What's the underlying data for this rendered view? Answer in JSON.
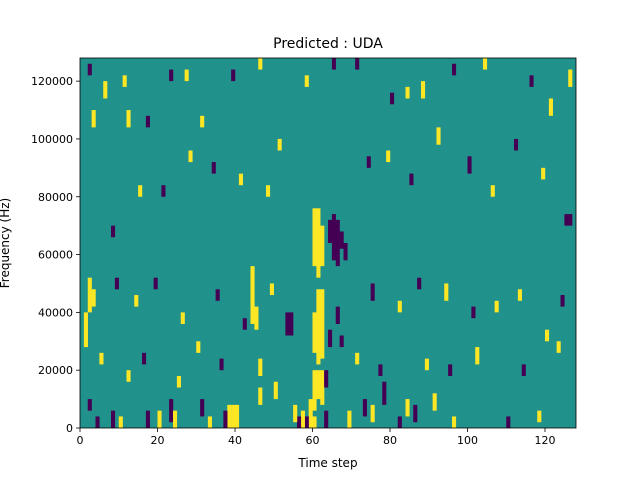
{
  "chart_data": {
    "type": "heatmap",
    "title": "Predicted : UDA",
    "xlabel": "Time step",
    "ylabel": "Frequency (Hz)",
    "xlim": [
      0,
      128
    ],
    "ylim": [
      0,
      128000
    ],
    "x_ticks": [
      0,
      20,
      40,
      60,
      80,
      100,
      120
    ],
    "x_tick_labels": [
      "0",
      "20",
      "40",
      "60",
      "80",
      "100",
      "120"
    ],
    "y_ticks": [
      0,
      20000,
      40000,
      60000,
      80000,
      100000,
      120000
    ],
    "y_tick_labels": [
      "0",
      "20000",
      "40000",
      "60000",
      "80000",
      "100000",
      "120000"
    ],
    "grid": false,
    "legend": "none",
    "colormap": "viridis",
    "value_colors": {
      "-1": "#440154",
      "0": "#21918c",
      "1": "#fde725"
    },
    "background_value": 0,
    "frequency_bin_hz": 2000,
    "cells": [
      {
        "t": 60,
        "f": [
          56000,
          76000
        ],
        "v": 1
      },
      {
        "t": 61,
        "f": [
          52000,
          76000
        ],
        "v": 1
      },
      {
        "t": 62,
        "f": [
          56000,
          70000
        ],
        "v": 1
      },
      {
        "t": 60,
        "f": [
          26000,
          40000
        ],
        "v": 1
      },
      {
        "t": 61,
        "f": [
          22000,
          48000
        ],
        "v": 1
      },
      {
        "t": 62,
        "f": [
          24000,
          48000
        ],
        "v": 1
      },
      {
        "t": 60,
        "f": [
          6000,
          20000
        ],
        "v": 1
      },
      {
        "t": 61,
        "f": [
          10000,
          20000
        ],
        "v": 1
      },
      {
        "t": 62,
        "f": [
          8000,
          20000
        ],
        "v": 1
      },
      {
        "t": 59,
        "f": [
          0,
          10000
        ],
        "v": 1
      },
      {
        "t": 60,
        "f": [
          0,
          4000
        ],
        "v": 1
      },
      {
        "t": 58,
        "f": [
          0,
          4000
        ],
        "v": -1
      },
      {
        "t": 65,
        "f": [
          58000,
          74000
        ],
        "v": -1
      },
      {
        "t": 66,
        "f": [
          56000,
          72000
        ],
        "v": -1
      },
      {
        "t": 67,
        "f": [
          62000,
          68000
        ],
        "v": -1
      },
      {
        "t": 64,
        "f": [
          64000,
          72000
        ],
        "v": -1
      },
      {
        "t": 68,
        "f": [
          58000,
          64000
        ],
        "v": -1
      },
      {
        "t": 66,
        "f": [
          36000,
          42000
        ],
        "v": -1
      },
      {
        "t": 67,
        "f": [
          28000,
          32000
        ],
        "v": -1
      },
      {
        "t": 64,
        "f": [
          28000,
          34000
        ],
        "v": -1
      },
      {
        "t": 63,
        "f": [
          14000,
          20000
        ],
        "v": -1
      },
      {
        "t": 63,
        "f": [
          0,
          6000
        ],
        "v": -1
      },
      {
        "t": 57,
        "f": [
          0,
          6000
        ],
        "v": 1
      },
      {
        "t": 56,
        "f": [
          0,
          4000
        ],
        "v": -1
      },
      {
        "t": 38,
        "f": [
          0,
          8000
        ],
        "v": 1
      },
      {
        "t": 39,
        "f": [
          0,
          8000
        ],
        "v": 1
      },
      {
        "t": 40,
        "f": [
          0,
          8000
        ],
        "v": 1
      },
      {
        "t": 37,
        "f": [
          0,
          6000
        ],
        "v": -1
      },
      {
        "t": 53,
        "f": [
          32000,
          40000
        ],
        "v": -1
      },
      {
        "t": 54,
        "f": [
          32000,
          40000
        ],
        "v": -1
      },
      {
        "t": 44,
        "f": [
          36000,
          56000
        ],
        "v": 1
      },
      {
        "t": 45,
        "f": [
          34000,
          42000
        ],
        "v": 1
      },
      {
        "t": 46,
        "f": [
          18000,
          24000
        ],
        "v": 1
      },
      {
        "t": 1,
        "f": [
          28000,
          40000
        ],
        "v": 1
      },
      {
        "t": 2,
        "f": [
          40000,
          52000
        ],
        "v": 1
      },
      {
        "t": 3,
        "f": [
          42000,
          48000
        ],
        "v": 1
      },
      {
        "t": 2,
        "f": [
          6000,
          10000
        ],
        "v": -1
      },
      {
        "t": 4,
        "f": [
          0,
          4000
        ],
        "v": -1
      },
      {
        "t": 8,
        "f": [
          0,
          6000
        ],
        "v": -1
      },
      {
        "t": 10,
        "f": [
          0,
          4000
        ],
        "v": 1
      },
      {
        "t": 17,
        "f": [
          0,
          6000
        ],
        "v": -1
      },
      {
        "t": 20,
        "f": [
          0,
          6000
        ],
        "v": 1
      },
      {
        "t": 23,
        "f": [
          2000,
          10000
        ],
        "v": -1
      },
      {
        "t": 24,
        "f": [
          0,
          6000
        ],
        "v": 1
      },
      {
        "t": 31,
        "f": [
          4000,
          10000
        ],
        "v": -1
      },
      {
        "t": 33,
        "f": [
          0,
          4000
        ],
        "v": 1
      },
      {
        "t": 46,
        "f": [
          8000,
          14000
        ],
        "v": 1
      },
      {
        "t": 50,
        "f": [
          10000,
          16000
        ],
        "v": 1
      },
      {
        "t": 55,
        "f": [
          2000,
          8000
        ],
        "v": 1
      },
      {
        "t": 69,
        "f": [
          0,
          6000
        ],
        "v": 1
      },
      {
        "t": 73,
        "f": [
          4000,
          10000
        ],
        "v": -1
      },
      {
        "t": 75,
        "f": [
          2000,
          8000
        ],
        "v": 1
      },
      {
        "t": 78,
        "f": [
          8000,
          16000
        ],
        "v": -1
      },
      {
        "t": 82,
        "f": [
          0,
          4000
        ],
        "v": -1
      },
      {
        "t": 84,
        "f": [
          4000,
          10000
        ],
        "v": 1
      },
      {
        "t": 86,
        "f": [
          2000,
          8000
        ],
        "v": -1
      },
      {
        "t": 91,
        "f": [
          6000,
          12000
        ],
        "v": 1
      },
      {
        "t": 96,
        "f": [
          0,
          4000
        ],
        "v": 1
      },
      {
        "t": 110,
        "f": [
          0,
          4000
        ],
        "v": -1
      },
      {
        "t": 118,
        "f": [
          2000,
          6000
        ],
        "v": 1
      },
      {
        "t": 125,
        "f": [
          70000,
          74000
        ],
        "v": -1
      },
      {
        "t": 126,
        "f": [
          70000,
          74000
        ],
        "v": -1
      },
      {
        "t": 2,
        "f": [
          122000,
          126000
        ],
        "v": -1
      },
      {
        "t": 3,
        "f": [
          104000,
          110000
        ],
        "v": 1
      },
      {
        "t": 6,
        "f": [
          114000,
          120000
        ],
        "v": 1
      },
      {
        "t": 11,
        "f": [
          118000,
          122000
        ],
        "v": 1
      },
      {
        "t": 12,
        "f": [
          104000,
          110000
        ],
        "v": 1
      },
      {
        "t": 17,
        "f": [
          104000,
          108000
        ],
        "v": -1
      },
      {
        "t": 23,
        "f": [
          120000,
          124000
        ],
        "v": -1
      },
      {
        "t": 27,
        "f": [
          120000,
          124000
        ],
        "v": 1
      },
      {
        "t": 31,
        "f": [
          104000,
          108000
        ],
        "v": 1
      },
      {
        "t": 39,
        "f": [
          120000,
          124000
        ],
        "v": -1
      },
      {
        "t": 46,
        "f": [
          124000,
          128000
        ],
        "v": 1
      },
      {
        "t": 58,
        "f": [
          118000,
          122000
        ],
        "v": 1
      },
      {
        "t": 65,
        "f": [
          124000,
          128000
        ],
        "v": -1
      },
      {
        "t": 71,
        "f": [
          124000,
          128000
        ],
        "v": -1
      },
      {
        "t": 80,
        "f": [
          112000,
          116000
        ],
        "v": -1
      },
      {
        "t": 84,
        "f": [
          114000,
          118000
        ],
        "v": 1
      },
      {
        "t": 88,
        "f": [
          114000,
          120000
        ],
        "v": 1
      },
      {
        "t": 96,
        "f": [
          122000,
          126000
        ],
        "v": -1
      },
      {
        "t": 104,
        "f": [
          124000,
          128000
        ],
        "v": 1
      },
      {
        "t": 116,
        "f": [
          118000,
          122000
        ],
        "v": -1
      },
      {
        "t": 121,
        "f": [
          108000,
          114000
        ],
        "v": 1
      },
      {
        "t": 126,
        "f": [
          118000,
          124000
        ],
        "v": 1
      },
      {
        "t": 8,
        "f": [
          66000,
          70000
        ],
        "v": -1
      },
      {
        "t": 15,
        "f": [
          80000,
          84000
        ],
        "v": 1
      },
      {
        "t": 21,
        "f": [
          80000,
          84000
        ],
        "v": -1
      },
      {
        "t": 28,
        "f": [
          92000,
          96000
        ],
        "v": 1
      },
      {
        "t": 34,
        "f": [
          88000,
          92000
        ],
        "v": -1
      },
      {
        "t": 41,
        "f": [
          84000,
          88000
        ],
        "v": 1
      },
      {
        "t": 48,
        "f": [
          80000,
          84000
        ],
        "v": 1
      },
      {
        "t": 51,
        "f": [
          96000,
          100000
        ],
        "v": 1
      },
      {
        "t": 74,
        "f": [
          90000,
          94000
        ],
        "v": -1
      },
      {
        "t": 79,
        "f": [
          92000,
          96000
        ],
        "v": 1
      },
      {
        "t": 85,
        "f": [
          84000,
          88000
        ],
        "v": -1
      },
      {
        "t": 92,
        "f": [
          98000,
          104000
        ],
        "v": 1
      },
      {
        "t": 100,
        "f": [
          88000,
          94000
        ],
        "v": -1
      },
      {
        "t": 106,
        "f": [
          80000,
          84000
        ],
        "v": 1
      },
      {
        "t": 112,
        "f": [
          96000,
          100000
        ],
        "v": -1
      },
      {
        "t": 119,
        "f": [
          86000,
          90000
        ],
        "v": 1
      },
      {
        "t": 9,
        "f": [
          48000,
          52000
        ],
        "v": -1
      },
      {
        "t": 14,
        "f": [
          42000,
          46000
        ],
        "v": 1
      },
      {
        "t": 19,
        "f": [
          48000,
          52000
        ],
        "v": -1
      },
      {
        "t": 26,
        "f": [
          36000,
          40000
        ],
        "v": 1
      },
      {
        "t": 35,
        "f": [
          44000,
          48000
        ],
        "v": -1
      },
      {
        "t": 42,
        "f": [
          34000,
          38000
        ],
        "v": -1
      },
      {
        "t": 49,
        "f": [
          46000,
          50000
        ],
        "v": 1
      },
      {
        "t": 75,
        "f": [
          44000,
          50000
        ],
        "v": -1
      },
      {
        "t": 82,
        "f": [
          40000,
          44000
        ],
        "v": 1
      },
      {
        "t": 87,
        "f": [
          48000,
          52000
        ],
        "v": -1
      },
      {
        "t": 94,
        "f": [
          44000,
          50000
        ],
        "v": 1
      },
      {
        "t": 101,
        "f": [
          38000,
          42000
        ],
        "v": -1
      },
      {
        "t": 107,
        "f": [
          40000,
          44000
        ],
        "v": 1
      },
      {
        "t": 113,
        "f": [
          44000,
          48000
        ],
        "v": 1
      },
      {
        "t": 120,
        "f": [
          30000,
          34000
        ],
        "v": 1
      },
      {
        "t": 124,
        "f": [
          42000,
          46000
        ],
        "v": -1
      },
      {
        "t": 5,
        "f": [
          22000,
          26000
        ],
        "v": 1
      },
      {
        "t": 12,
        "f": [
          16000,
          20000
        ],
        "v": 1
      },
      {
        "t": 16,
        "f": [
          22000,
          26000
        ],
        "v": -1
      },
      {
        "t": 25,
        "f": [
          14000,
          18000
        ],
        "v": 1
      },
      {
        "t": 30,
        "f": [
          26000,
          30000
        ],
        "v": 1
      },
      {
        "t": 36,
        "f": [
          20000,
          24000
        ],
        "v": -1
      },
      {
        "t": 71,
        "f": [
          22000,
          26000
        ],
        "v": 1
      },
      {
        "t": 77,
        "f": [
          18000,
          22000
        ],
        "v": -1
      },
      {
        "t": 89,
        "f": [
          20000,
          24000
        ],
        "v": 1
      },
      {
        "t": 95,
        "f": [
          18000,
          22000
        ],
        "v": -1
      },
      {
        "t": 102,
        "f": [
          22000,
          28000
        ],
        "v": 1
      },
      {
        "t": 114,
        "f": [
          18000,
          22000
        ],
        "v": -1
      },
      {
        "t": 123,
        "f": [
          26000,
          30000
        ],
        "v": 1
      }
    ]
  }
}
